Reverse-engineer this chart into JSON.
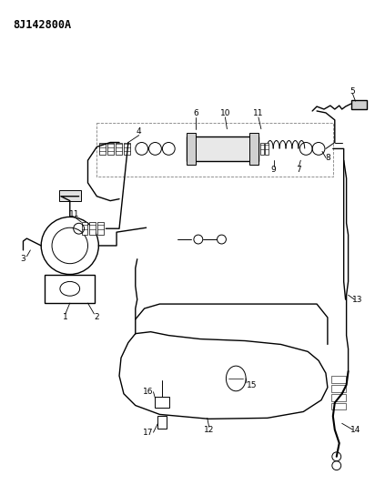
{
  "title": "8J142800A",
  "bg": "#ffffff",
  "lc": "#000000",
  "fig_w": 4.12,
  "fig_h": 5.33,
  "dpi": 100
}
